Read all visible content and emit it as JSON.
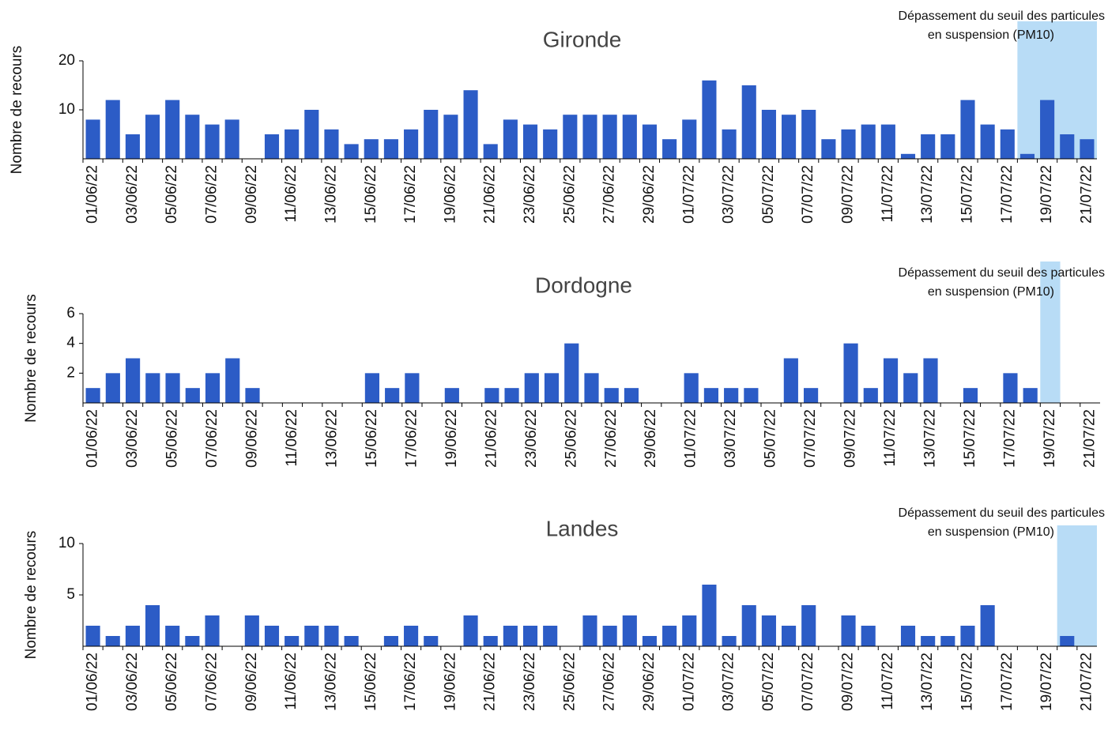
{
  "chart_data": [
    {
      "type": "bar",
      "title": "Gironde",
      "y_label": "Nombre de recours",
      "color": "#2c5cc6",
      "categories": [
        "01/06/22",
        null,
        "03/06/22",
        null,
        "05/06/22",
        null,
        "07/06/22",
        null,
        "09/06/22",
        null,
        "11/06/22",
        null,
        "13/06/22",
        null,
        "15/06/22",
        null,
        "17/06/22",
        null,
        "19/06/22",
        null,
        "21/06/22",
        null,
        "23/06/22",
        null,
        "25/06/22",
        null,
        "27/06/22",
        null,
        "29/06/22",
        null,
        "01/07/22",
        null,
        "03/07/22",
        null,
        "05/07/22",
        null,
        "07/07/22",
        null,
        "09/07/22",
        null,
        "11/07/22",
        null,
        "13/07/22",
        null,
        "15/07/22",
        null,
        "17/07/22",
        null,
        "19/07/22",
        null,
        "21/07/22"
      ],
      "values": [
        8,
        12,
        5,
        9,
        12,
        9,
        7,
        8,
        0,
        5,
        6,
        10,
        6,
        3,
        4,
        4,
        6,
        10,
        9,
        14,
        3,
        8,
        7,
        6,
        9,
        9,
        9,
        9,
        7,
        4,
        8,
        16,
        6,
        15,
        10,
        9,
        10,
        4,
        6,
        7,
        7,
        1,
        5,
        5,
        12,
        7,
        6,
        1,
        12,
        5,
        4
      ],
      "ylim": [
        0,
        20
      ],
      "yticks": [
        10,
        20
      ],
      "highlight": {
        "text": [
          "Dépassement du seuil des particules",
          "en suspension (PM10)"
        ],
        "start": 47,
        "end": 50,
        "color": "#b8dcf6"
      }
    },
    {
      "type": "bar",
      "title": "Dordogne",
      "y_label": "Nombre de recours",
      "color": "#2c5cc6",
      "categories": [
        "01/06/22",
        null,
        "03/06/22",
        null,
        "05/06/22",
        null,
        "07/06/22",
        null,
        "09/06/22",
        null,
        "11/06/22",
        null,
        "13/06/22",
        null,
        "15/06/22",
        null,
        "17/06/22",
        null,
        "19/06/22",
        null,
        "21/06/22",
        null,
        "23/06/22",
        null,
        "25/06/22",
        null,
        "27/06/22",
        null,
        "29/06/22",
        null,
        "01/07/22",
        null,
        "03/07/22",
        null,
        "05/07/22",
        null,
        "07/07/22",
        null,
        "09/07/22",
        null,
        "11/07/22",
        null,
        "13/07/22",
        null,
        "15/07/22",
        null,
        "17/07/22",
        null,
        "19/07/22",
        null,
        "21/07/22"
      ],
      "values": [
        1,
        2,
        3,
        2,
        2,
        1,
        2,
        3,
        1,
        0,
        0,
        0,
        0,
        0,
        2,
        1,
        2,
        0,
        1,
        0,
        1,
        1,
        2,
        2,
        4,
        2,
        1,
        1,
        0,
        0,
        2,
        1,
        1,
        1,
        0,
        3,
        1,
        0,
        4,
        1,
        3,
        2,
        3,
        0,
        1,
        0,
        2,
        1,
        0,
        0,
        0
      ],
      "ylim": [
        0,
        6
      ],
      "yticks": [
        2,
        4,
        6
      ],
      "highlight": {
        "text": [
          "Dépassement du seuil des particules",
          "en suspension (PM10)"
        ],
        "start": 48,
        "end": 48,
        "color": "#b8dcf6"
      }
    },
    {
      "type": "bar",
      "title": "Landes",
      "y_label": "Nombre de recours",
      "color": "#2c5cc6",
      "categories": [
        "01/06/22",
        null,
        "03/06/22",
        null,
        "05/06/22",
        null,
        "07/06/22",
        null,
        "09/06/22",
        null,
        "11/06/22",
        null,
        "13/06/22",
        null,
        "15/06/22",
        null,
        "17/06/22",
        null,
        "19/06/22",
        null,
        "21/06/22",
        null,
        "23/06/22",
        null,
        "25/06/22",
        null,
        "27/06/22",
        null,
        "29/06/22",
        null,
        "01/07/22",
        null,
        "03/07/22",
        null,
        "05/07/22",
        null,
        "07/07/22",
        null,
        "09/07/22",
        null,
        "11/07/22",
        null,
        "13/07/22",
        null,
        "15/07/22",
        null,
        "17/07/22",
        null,
        "19/07/22",
        null,
        "21/07/22"
      ],
      "values": [
        2,
        1,
        2,
        4,
        2,
        1,
        3,
        0,
        3,
        2,
        1,
        2,
        2,
        1,
        0,
        1,
        2,
        1,
        0,
        3,
        1,
        2,
        2,
        2,
        0,
        3,
        2,
        3,
        1,
        2,
        3,
        6,
        1,
        4,
        3,
        2,
        4,
        0,
        3,
        2,
        0,
        2,
        1,
        1,
        2,
        4,
        0,
        0,
        0,
        1,
        0
      ],
      "ylim": [
        0,
        10
      ],
      "yticks": [
        5,
        10
      ],
      "highlight": {
        "text": [
          "Dépassement du seuil des particules",
          "en suspension (PM10)"
        ],
        "start": 49,
        "end": 50,
        "color": "#b8dcf6"
      }
    }
  ]
}
